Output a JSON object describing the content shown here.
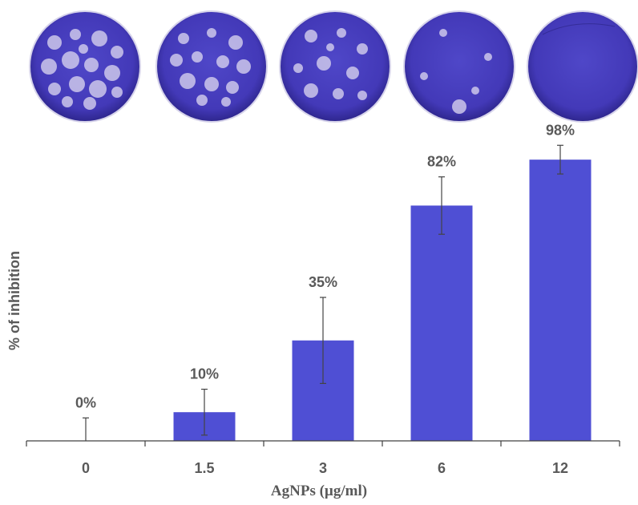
{
  "chart_data": {
    "type": "bar",
    "categories": [
      "0",
      "1.5",
      "3",
      "6",
      "12"
    ],
    "values": [
      0,
      10,
      35,
      82,
      98
    ],
    "error": [
      8,
      8,
      15,
      10,
      5
    ],
    "data_labels": [
      "0%",
      "10%",
      "35%",
      "82%",
      "98%"
    ],
    "xlabel": "AgNPs (µg/ml)",
    "ylabel": "% of inhibition",
    "ylim": [
      0,
      100
    ],
    "grid": false,
    "legend": "none"
  },
  "plates": [
    {
      "name": "plate-0",
      "plaques": "many"
    },
    {
      "name": "plate-1.5",
      "plaques": "many"
    },
    {
      "name": "plate-3",
      "plaques": "some"
    },
    {
      "name": "plate-6",
      "plaques": "few"
    },
    {
      "name": "plate-12",
      "plaques": "none"
    }
  ],
  "colors": {
    "bar": "#4f4fd4",
    "plate": "#4a3fc2",
    "plaque": "#d9d3ee",
    "axis": "#404040",
    "text": "#595959"
  }
}
